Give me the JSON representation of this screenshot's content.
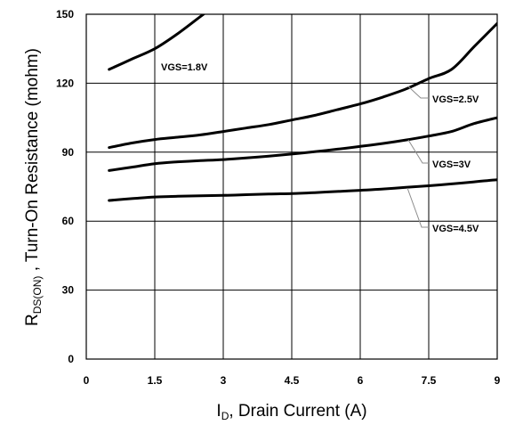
{
  "chart_data": {
    "type": "line",
    "xlabel": {
      "main": "I",
      "sub": "D",
      "rest": ", Drain Current (A)"
    },
    "ylabel": {
      "main": "R",
      "sub": "DS(ON)",
      "rest": " , Turn-On Resistance (mohm)"
    },
    "xlim": [
      0,
      9
    ],
    "ylim": [
      0,
      150
    ],
    "xticks": [
      "0",
      "1.5",
      "3",
      "4.5",
      "6",
      "7.5",
      "9"
    ],
    "yticks": [
      "0",
      "30",
      "60",
      "90",
      "120",
      "150"
    ],
    "grid": true,
    "series": [
      {
        "name": "VGS=1.8V",
        "x": [
          0.5,
          1,
          1.5,
          2,
          2.5,
          2.7
        ],
        "y": [
          126,
          130.5,
          135,
          141.5,
          149,
          152
        ]
      },
      {
        "name": "VGS=2.5V",
        "x": [
          0.5,
          1,
          1.5,
          2,
          2.5,
          3,
          3.5,
          4,
          4.5,
          5,
          5.5,
          6,
          6.5,
          7,
          7.5,
          8,
          8.5,
          9
        ],
        "y": [
          92,
          94,
          95.5,
          96.5,
          97.5,
          99,
          100.5,
          102,
          104,
          106,
          108.5,
          111,
          114,
          117.5,
          122,
          126,
          136,
          146
        ]
      },
      {
        "name": "VGS=3V",
        "x": [
          0.5,
          1,
          1.5,
          2,
          2.5,
          3,
          3.5,
          4,
          4.5,
          5,
          5.5,
          6,
          6.5,
          7,
          7.5,
          8,
          8.5,
          9
        ],
        "y": [
          82,
          83.5,
          85,
          85.8,
          86.3,
          86.8,
          87.5,
          88.3,
          89.2,
          90.2,
          91.3,
          92.5,
          93.8,
          95.3,
          97,
          99,
          102.5,
          105
        ]
      },
      {
        "name": "VGS=4.5V",
        "x": [
          0.5,
          1,
          1.5,
          2,
          2.5,
          3,
          3.5,
          4,
          4.5,
          5,
          5.5,
          6,
          6.5,
          7,
          7.5,
          8,
          8.5,
          9
        ],
        "y": [
          69,
          69.8,
          70.5,
          70.8,
          71,
          71.2,
          71.5,
          71.8,
          72,
          72.4,
          72.9,
          73.4,
          74,
          74.7,
          75.4,
          76.2,
          77.1,
          78
        ]
      }
    ],
    "annotations": [
      {
        "text": "VGS=1.8V",
        "series": "VGS=1.8V"
      },
      {
        "text": "VGS=2.5V",
        "series": "VGS=2.5V"
      },
      {
        "text": "VGS=3V",
        "series": "VGS=3V"
      },
      {
        "text": "VGS=4.5V",
        "series": "VGS=4.5V"
      }
    ]
  }
}
